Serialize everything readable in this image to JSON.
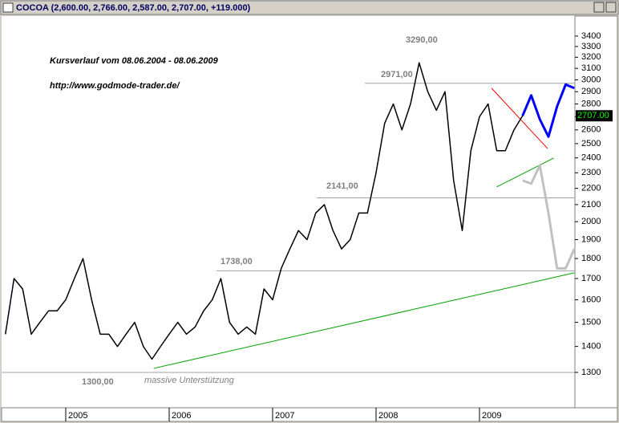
{
  "chart_data": {
    "type": "line",
    "title": "COCOA (2,600.00, 2,766.00, 2,587.00, 2,707.00, +119.000)",
    "annotations": [
      "Kursverlauf vom 08.06.2004 - 08.06.2009",
      "http://www.godmode-trader.de/",
      "3290,00",
      "massive Unterstützung"
    ],
    "categories": [
      null,
      null,
      null,
      null,
      null,
      null,
      null,
      "2005",
      null,
      null,
      null,
      null,
      null,
      null,
      null,
      null,
      null,
      null,
      null,
      "2006",
      null,
      null,
      null,
      null,
      null,
      null,
      null,
      null,
      null,
      null,
      null,
      "2007",
      null,
      null,
      null,
      null,
      null,
      null,
      null,
      null,
      null,
      null,
      null,
      "2008",
      null,
      null,
      null,
      null,
      null,
      null,
      null,
      null,
      null,
      null,
      null,
      "2009",
      null,
      null,
      null,
      null,
      null,
      null,
      null,
      null,
      null,
      null,
      null
    ],
    "series": [
      {
        "color": "#000000",
        "values": [
          1450,
          1700,
          1650,
          1450,
          1500,
          1550,
          1550,
          1600,
          1700,
          1800,
          1600,
          1450,
          1450,
          1400,
          1450,
          1500,
          1400,
          1350,
          1400,
          1450,
          1500,
          1450,
          1480,
          1550,
          1600,
          1700,
          1500,
          1450,
          1480,
          1450,
          1650,
          1600,
          1750,
          1850,
          1950,
          1900,
          2050,
          2100,
          1950,
          1850,
          1900,
          2050,
          2050,
          2300,
          2650,
          2800,
          2600,
          2800,
          3150,
          2900,
          2750,
          2900,
          2250,
          1950,
          2450,
          2700,
          2800,
          2450,
          2450,
          2600,
          2707,
          null,
          null,
          null,
          null,
          null,
          null
        ]
      },
      {
        "color": "#0000ff",
        "values": [
          null,
          null,
          null,
          null,
          null,
          null,
          null,
          null,
          null,
          null,
          null,
          null,
          null,
          null,
          null,
          null,
          null,
          null,
          null,
          null,
          null,
          null,
          null,
          null,
          null,
          null,
          null,
          null,
          null,
          null,
          null,
          null,
          null,
          null,
          null,
          null,
          null,
          null,
          null,
          null,
          null,
          null,
          null,
          null,
          null,
          null,
          null,
          null,
          null,
          null,
          null,
          null,
          null,
          null,
          null,
          null,
          null,
          null,
          null,
          null,
          2707,
          2870,
          2680,
          2550,
          2780,
          2960,
          2930
        ]
      },
      {
        "color": "#c0c0c0",
        "values": [
          null,
          null,
          null,
          null,
          null,
          null,
          null,
          null,
          null,
          null,
          null,
          null,
          null,
          null,
          null,
          null,
          null,
          null,
          null,
          null,
          null,
          null,
          null,
          null,
          null,
          null,
          null,
          null,
          null,
          null,
          null,
          null,
          null,
          null,
          null,
          null,
          null,
          null,
          null,
          null,
          null,
          null,
          null,
          null,
          null,
          null,
          null,
          null,
          null,
          null,
          null,
          null,
          null,
          null,
          null,
          null,
          null,
          null,
          null,
          null,
          2250,
          2230,
          2350,
          2050,
          1750,
          1750,
          1850
        ]
      }
    ],
    "trendlines": [
      {
        "color": "#ff0000",
        "x": [
          56.4,
          62.9
        ],
        "values": [
          2929,
          2465
        ]
      },
      {
        "color": "#00a000",
        "x": [
          57.0,
          63.6
        ],
        "values": [
          2209,
          2399
        ]
      },
      {
        "color": "#00a000",
        "x": [
          17.2,
          66.0
        ],
        "values": [
          1315,
          1728
        ]
      }
    ],
    "levels": [
      {
        "value": 2971,
        "label": "2971,00"
      },
      {
        "value": 2141,
        "label": "2141,00"
      },
      {
        "value": 1738,
        "label": "1738,00"
      },
      {
        "value": 1300,
        "label": "1300,00"
      }
    ],
    "last_price": {
      "value": 2707,
      "label": "2707.00"
    },
    "log_scale": true,
    "grid": false,
    "ylim": [
      1175,
      3600
    ],
    "yticks": [
      1300,
      1400,
      1500,
      1600,
      1700,
      1800,
      1900,
      2000,
      2100,
      2200,
      2300,
      2400,
      2500,
      2600,
      2700,
      2800,
      2900,
      3000,
      3100,
      3200,
      3300,
      3400
    ]
  }
}
